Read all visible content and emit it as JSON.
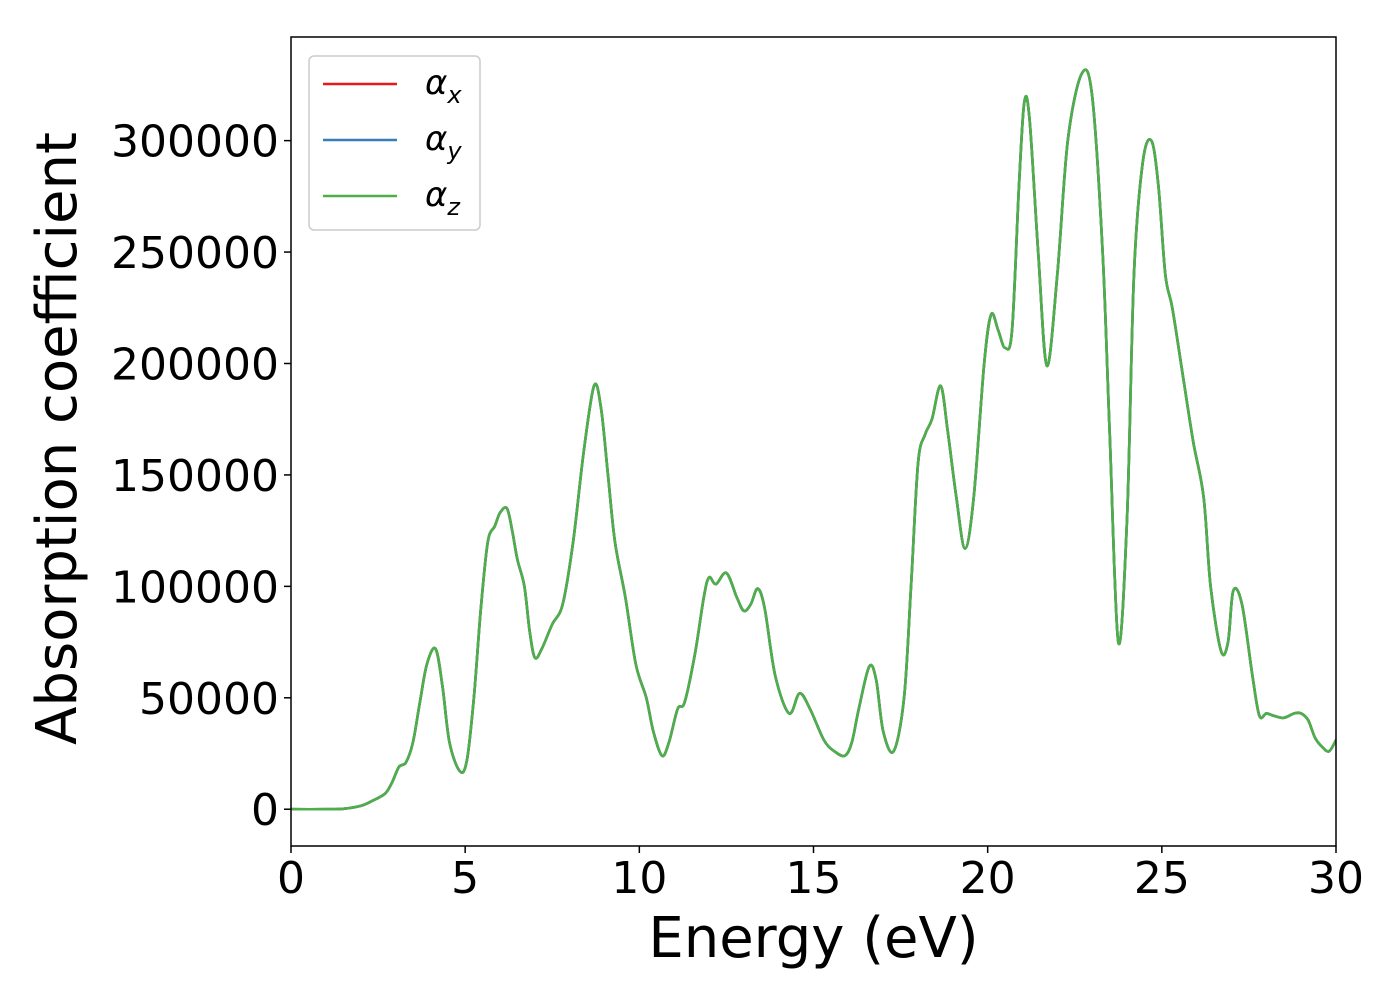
{
  "chart_data": {
    "type": "line",
    "title": "",
    "xlabel": "Energy (eV)",
    "ylabel": "Absorption coefficient",
    "xlim": [
      0,
      30
    ],
    "ylim": [
      -16500,
      346500
    ],
    "xticks": [
      0,
      5,
      10,
      15,
      20,
      25,
      30
    ],
    "xtick_labels": [
      "0",
      "5",
      "10",
      "15",
      "20",
      "25",
      "30"
    ],
    "yticks": [
      0,
      50000,
      100000,
      150000,
      200000,
      250000,
      300000
    ],
    "ytick_labels": [
      "0",
      "50000",
      "100000",
      "150000",
      "200000",
      "250000",
      "300000"
    ],
    "grid": false,
    "legend_position": "top-left",
    "series": [
      {
        "name": "αx",
        "name_base": "α",
        "name_sub": "x",
        "color": "#e41a1c",
        "x": [
          0,
          1,
          1.5,
          2,
          2.3,
          2.7,
          2.9,
          3.1,
          3.3,
          3.5,
          3.7,
          3.9,
          4.15,
          4.35,
          4.55,
          4.85,
          5.05,
          5.25,
          5.45,
          5.65,
          5.85,
          6.0,
          6.2,
          6.35,
          6.5,
          6.7,
          6.85,
          7.0,
          7.2,
          7.5,
          7.8,
          8.1,
          8.4,
          8.7,
          8.9,
          9.1,
          9.3,
          9.6,
          9.9,
          10.2,
          10.4,
          10.65,
          10.85,
          11.1,
          11.3,
          11.6,
          11.85,
          12.0,
          12.2,
          12.5,
          12.8,
          13.0,
          13.2,
          13.4,
          13.6,
          13.9,
          14.3,
          14.6,
          14.9,
          15.3,
          15.6,
          15.9,
          16.1,
          16.3,
          16.6,
          16.8,
          17.0,
          17.3,
          17.6,
          17.8,
          18.0,
          18.2,
          18.4,
          18.65,
          18.85,
          19.1,
          19.35,
          19.6,
          19.9,
          20.1,
          20.3,
          20.5,
          20.7,
          20.9,
          21.05,
          21.2,
          21.45,
          21.7,
          22.0,
          22.3,
          22.7,
          23.0,
          23.3,
          23.5,
          23.75,
          24.0,
          24.2,
          24.45,
          24.7,
          24.9,
          25.1,
          25.3,
          25.6,
          25.9,
          26.2,
          26.4,
          26.7,
          26.9,
          27.05,
          27.3,
          27.6,
          27.8,
          28.0,
          28.2,
          28.5,
          28.8,
          29.0,
          29.2,
          29.4,
          29.6,
          29.8,
          30.0
        ],
        "y": [
          0,
          0,
          200,
          1500,
          3500,
          7000,
          12000,
          19000,
          21000,
          30000,
          48000,
          65000,
          72000,
          55000,
          30000,
          17000,
          22000,
          50000,
          90000,
          120000,
          127000,
          133000,
          135000,
          125000,
          112000,
          100000,
          80000,
          68000,
          72000,
          83000,
          92000,
          120000,
          160000,
          190000,
          180000,
          150000,
          120000,
          95000,
          65000,
          50000,
          35000,
          24000,
          30000,
          45000,
          48000,
          70000,
          95000,
          104000,
          101000,
          106000,
          95000,
          89000,
          92000,
          99000,
          90000,
          60000,
          43000,
          52000,
          45000,
          31000,
          26000,
          24000,
          30000,
          45000,
          64000,
          58000,
          35000,
          26000,
          50000,
          100000,
          155000,
          168000,
          175000,
          190000,
          170000,
          140000,
          117000,
          140000,
          200000,
          222000,
          215000,
          207000,
          215000,
          280000,
          317000,
          310000,
          250000,
          199000,
          240000,
          300000,
          330000,
          320000,
          250000,
          170000,
          75000,
          130000,
          240000,
          290000,
          300000,
          280000,
          240000,
          225000,
          195000,
          165000,
          140000,
          100000,
          71000,
          75000,
          98000,
          92000,
          60000,
          42000,
          43000,
          42000,
          41000,
          43000,
          43000,
          40000,
          32000,
          28000,
          26000,
          31000
        ]
      },
      {
        "name": "αy",
        "name_base": "α",
        "name_sub": "y",
        "color": "#377eb8",
        "same_as": "αx"
      },
      {
        "name": "αz",
        "name_base": "α",
        "name_sub": "z",
        "color": "#4daf4a",
        "same_as": "αx"
      }
    ]
  }
}
